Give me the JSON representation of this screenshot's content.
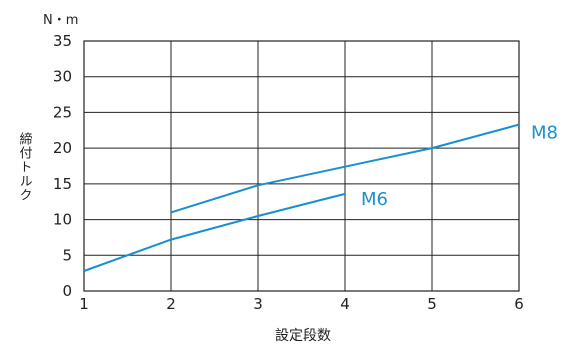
{
  "chart_data": {
    "type": "line",
    "title": "",
    "xlabel": "設定段数",
    "ylabel": "締付トルク",
    "yunit": "N・m",
    "x_ticks": [
      1,
      2,
      3,
      4,
      5,
      6
    ],
    "y_ticks": [
      0,
      5,
      10,
      15,
      20,
      25,
      30,
      35
    ],
    "xlim": [
      1,
      6
    ],
    "ylim": [
      0,
      35
    ],
    "grid": true,
    "series": [
      {
        "name": "M6",
        "color": "#1a8fcf",
        "x": [
          1,
          2,
          3,
          4
        ],
        "y": [
          2.8,
          7.2,
          10.5,
          13.6
        ]
      },
      {
        "name": "M8",
        "color": "#1a8fcf",
        "x": [
          2,
          3,
          4,
          5,
          6
        ],
        "y": [
          11.0,
          14.8,
          17.4,
          20.0,
          23.3
        ]
      }
    ]
  }
}
